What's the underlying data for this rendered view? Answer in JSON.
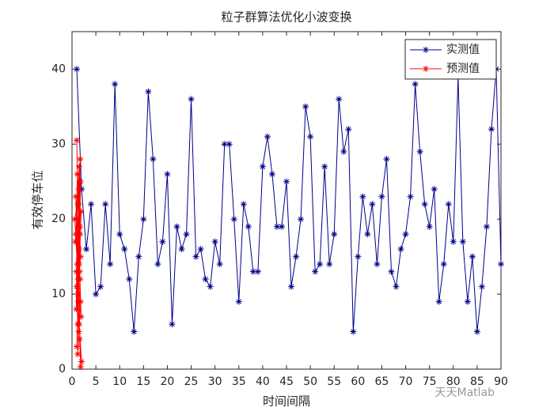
{
  "chart_data": {
    "type": "line",
    "title": "粒子群算法优化小波变换",
    "x_label": "时间间隔",
    "y_label": "有效停车位",
    "watermark": "天天Matlab",
    "xlim": [
      0,
      90
    ],
    "xticks": [
      0,
      5,
      10,
      15,
      20,
      25,
      30,
      35,
      40,
      45,
      50,
      55,
      60,
      65,
      70,
      75,
      80,
      85,
      90
    ],
    "ylim": [
      0,
      45
    ],
    "yticks": [
      0,
      10,
      20,
      30,
      40
    ],
    "legend": "northeast",
    "series": [
      {
        "name": "实测值",
        "color": "#00008b",
        "x": [
          1,
          2,
          3,
          4,
          5,
          6,
          7,
          8,
          9,
          10,
          11,
          12,
          13,
          14,
          15,
          16,
          17,
          18,
          19,
          20,
          21,
          22,
          23,
          24,
          25,
          26,
          27,
          28,
          29,
          30,
          31,
          32,
          33,
          34,
          35,
          36,
          37,
          38,
          39,
          40,
          41,
          42,
          43,
          44,
          45,
          46,
          47,
          48,
          49,
          50,
          51,
          52,
          53,
          54,
          55,
          56,
          57,
          58,
          59,
          60,
          61,
          62,
          63,
          64,
          65,
          66,
          67,
          68,
          69,
          70,
          71,
          72,
          73,
          74,
          75,
          76,
          77,
          78,
          79,
          80,
          81,
          82,
          83,
          84,
          85,
          86,
          87,
          88,
          89,
          90
        ],
        "values": [
          40,
          24,
          16,
          22,
          10,
          11,
          22,
          14,
          38,
          18,
          16,
          12,
          5,
          15,
          20,
          37,
          28,
          14,
          17,
          26,
          6,
          19,
          16,
          18,
          36,
          15,
          16,
          12,
          11,
          17,
          14,
          30,
          30,
          20,
          9,
          22,
          19,
          13,
          13,
          27,
          31,
          26,
          19,
          19,
          25,
          11,
          15,
          20,
          35,
          31,
          13,
          14,
          27,
          14,
          18,
          36,
          29,
          32,
          5,
          15,
          23,
          18,
          22,
          14,
          23,
          28,
          13,
          11,
          16,
          18,
          23,
          38,
          29,
          22,
          19,
          24,
          9,
          14,
          22,
          17,
          39,
          17,
          9,
          15,
          5,
          11,
          19,
          32,
          40,
          14
        ]
      },
      {
        "name": "预测值",
        "color": "#ff0000",
        "x": [
          1.0,
          1.2,
          0.8,
          1.5,
          1.1,
          0.6,
          1.8,
          1.3,
          0.9,
          1.6,
          1.4,
          0.7,
          1.9,
          1.2,
          1.0,
          1.7,
          1.5,
          0.8,
          1.3,
          1.6,
          1.1,
          0.9,
          1.8,
          1.4,
          1.2,
          1.7,
          1.0,
          1.5,
          1.3,
          1.9,
          1.6,
          1.1,
          1.4,
          1.8,
          1.2,
          1.7,
          1.5,
          2.0,
          1.6,
          1.8
        ],
        "values": [
          30.5,
          22,
          18,
          27,
          14,
          20,
          25,
          9,
          13,
          19,
          24,
          17,
          21,
          6,
          11,
          28,
          16,
          23,
          12,
          19,
          26,
          8,
          15,
          22,
          10,
          18,
          3,
          14,
          20,
          7,
          13,
          11,
          5,
          9,
          2,
          12,
          6,
          1,
          4,
          0.3
        ]
      }
    ]
  }
}
